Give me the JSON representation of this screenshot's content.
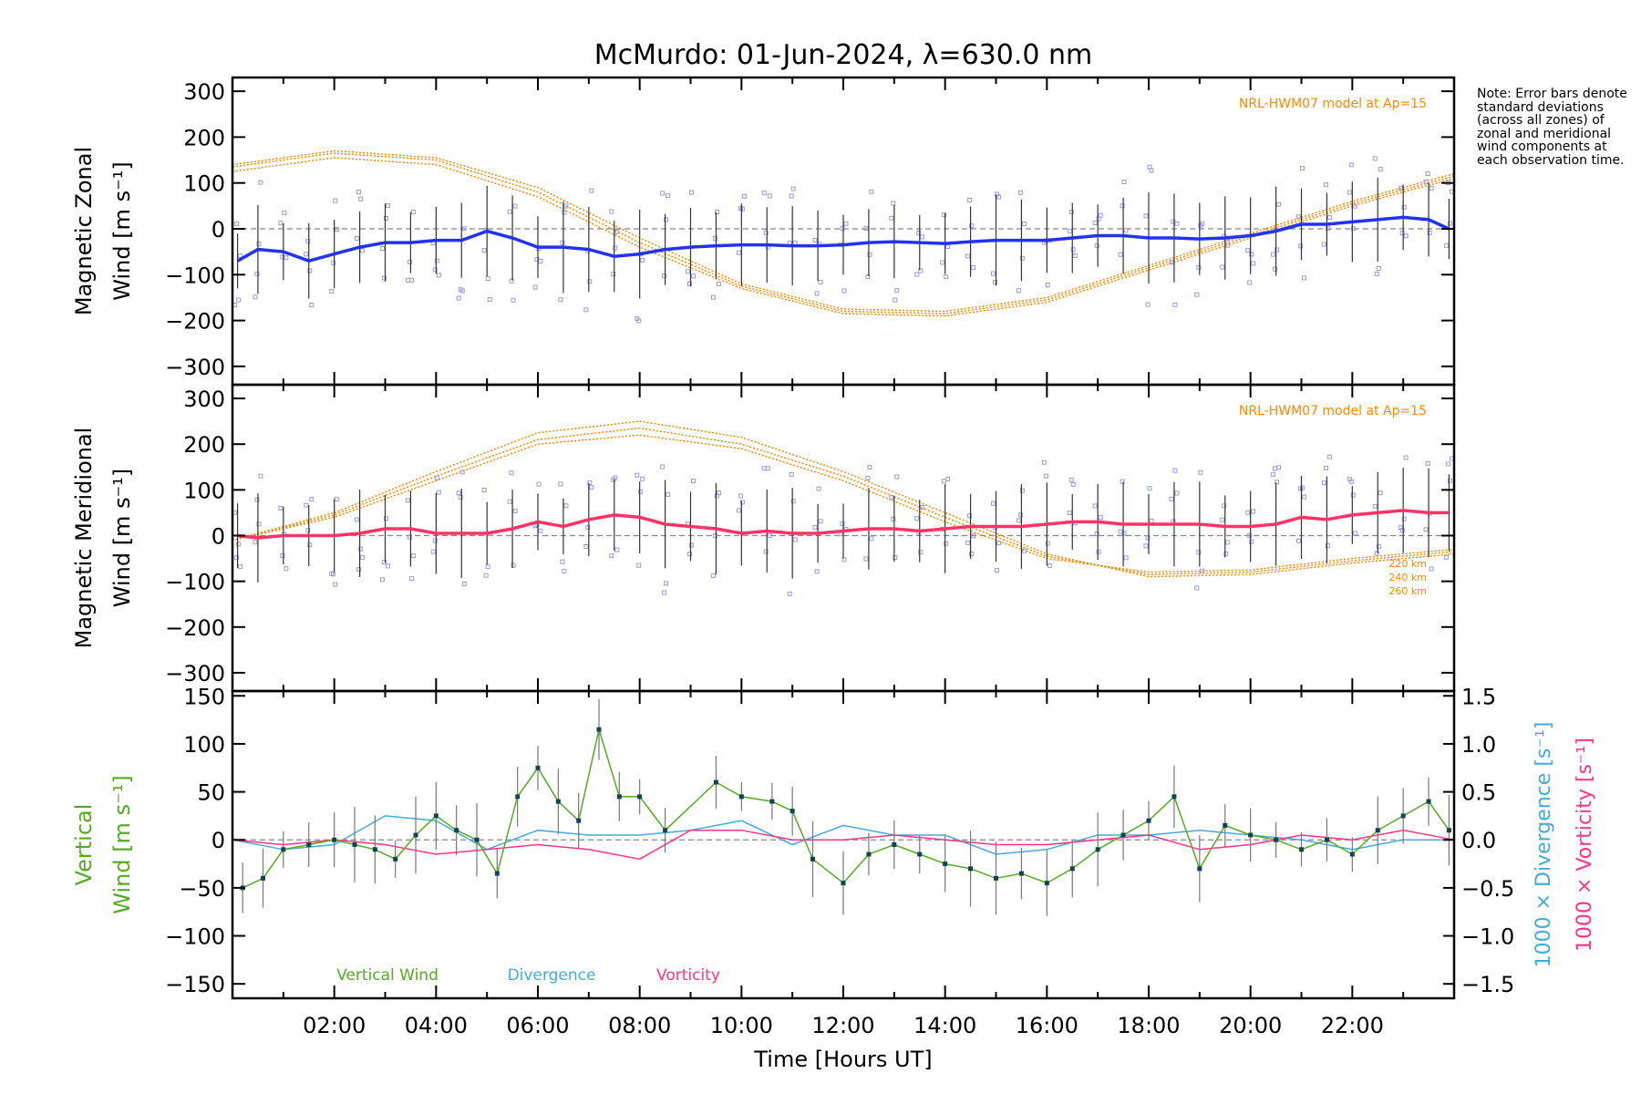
{
  "title": "McMurdo: 01-Jun-2024, λ=630.0 nm",
  "note": "Note: Error bars denote standard deviations (across all zones) of zonal and meridional wind components at each observation time.",
  "xlabel": "Time [Hours UT]",
  "x_tick_labels": [
    "02:00",
    "04:00",
    "06:00",
    "08:00",
    "10:00",
    "12:00",
    "14:00",
    "16:00",
    "18:00",
    "20:00",
    "22:00"
  ],
  "colors": {
    "zonal": "#2233ee",
    "zonal_end": "#3399ff",
    "meridional": "#ff3366",
    "model": "#ff8800",
    "scatter": "#9999dd",
    "vertical": "#55aa22",
    "divergence": "#44aadd",
    "vorticity": "#ff3388",
    "errbar": "#333333"
  },
  "chart_data": [
    {
      "type": "line",
      "name": "zonal",
      "ylabel_line1": "Magnetic Zonal",
      "ylabel_line2": "Wind [m s⁻¹]",
      "y_tick_labels": [
        "300",
        "200",
        "100",
        "0",
        "−100",
        "−200",
        "−300"
      ],
      "xlim": [
        0.0,
        24.0
      ],
      "ylim": [
        -340,
        330
      ],
      "model_label": "NRL-HWM07 model at Ap=15",
      "x": [
        0.1,
        0.5,
        1.0,
        1.5,
        2.0,
        2.5,
        3.0,
        3.5,
        4.0,
        4.5,
        5.0,
        5.5,
        6.0,
        6.5,
        7.0,
        7.5,
        8.0,
        8.5,
        9.0,
        9.5,
        10.0,
        10.5,
        11.0,
        11.5,
        12.0,
        12.5,
        13.0,
        13.5,
        14.0,
        14.5,
        15.0,
        15.5,
        16.0,
        16.5,
        17.0,
        17.5,
        18.0,
        18.5,
        19.0,
        19.5,
        20.0,
        20.5,
        21.0,
        21.5,
        22.0,
        22.5,
        23.0,
        23.5,
        23.9
      ],
      "y": [
        -70,
        -45,
        -50,
        -70,
        -55,
        -40,
        -30,
        -30,
        -25,
        -25,
        -5,
        -20,
        -40,
        -40,
        -45,
        -60,
        -55,
        -45,
        -40,
        -37,
        -35,
        -35,
        -37,
        -37,
        -35,
        -30,
        -28,
        -30,
        -32,
        -28,
        -25,
        -25,
        -25,
        -20,
        -15,
        -15,
        -20,
        -20,
        -22,
        -20,
        -15,
        -5,
        10,
        10,
        15,
        20,
        25,
        20,
        0
      ],
      "scatter_note": "",
      "models": [
        {
          "x": [
            0,
            2,
            4,
            6,
            8,
            10,
            12,
            14,
            16,
            18,
            20,
            22,
            24
          ],
          "y": [
            125,
            155,
            140,
            70,
            -40,
            -130,
            -185,
            -190,
            -160,
            -90,
            -20,
            50,
            110
          ]
        },
        {
          "x": [
            0,
            2,
            4,
            6,
            8,
            10,
            12,
            14,
            16,
            18,
            20,
            22,
            24
          ],
          "y": [
            135,
            165,
            150,
            80,
            -30,
            -125,
            -180,
            -185,
            -155,
            -85,
            -15,
            55,
            115
          ]
        },
        {
          "x": [
            0,
            2,
            4,
            6,
            8,
            10,
            12,
            14,
            16,
            18,
            20,
            22,
            24
          ],
          "y": [
            140,
            170,
            155,
            90,
            -20,
            -120,
            -175,
            -180,
            -150,
            -80,
            -10,
            60,
            120
          ]
        }
      ]
    },
    {
      "type": "line",
      "name": "meridional",
      "ylabel_line1": "Magnetic Meridional",
      "ylabel_line2": "Wind [m s⁻¹]",
      "y_tick_labels": [
        "300",
        "200",
        "100",
        "0",
        "−100",
        "−200",
        "−300"
      ],
      "xlim": [
        0.0,
        24.0
      ],
      "ylim": [
        -340,
        330
      ],
      "model_label": "NRL-HWM07 model at Ap=15",
      "model_alt_labels": [
        "220 km",
        "240 km",
        "260 km"
      ],
      "x": [
        0.1,
        0.5,
        1.0,
        1.5,
        2.0,
        2.5,
        3.0,
        3.5,
        4.0,
        4.5,
        5.0,
        5.5,
        6.0,
        6.5,
        7.0,
        7.5,
        8.0,
        8.5,
        9.0,
        9.5,
        10.0,
        10.5,
        11.0,
        11.5,
        12.0,
        12.5,
        13.0,
        13.5,
        14.0,
        14.5,
        15.0,
        15.5,
        16.0,
        16.5,
        17.0,
        17.5,
        18.0,
        18.5,
        19.0,
        19.5,
        20.0,
        20.5,
        21.0,
        21.5,
        22.0,
        22.5,
        23.0,
        23.5,
        23.9
      ],
      "y": [
        0,
        -5,
        0,
        0,
        0,
        5,
        15,
        15,
        5,
        5,
        5,
        15,
        30,
        20,
        35,
        45,
        40,
        25,
        20,
        15,
        5,
        10,
        5,
        5,
        10,
        15,
        15,
        10,
        15,
        20,
        20,
        20,
        25,
        30,
        30,
        25,
        25,
        25,
        25,
        20,
        20,
        25,
        40,
        35,
        45,
        50,
        55,
        50,
        50
      ],
      "models": [
        {
          "x": [
            0,
            2,
            4,
            6,
            8,
            10,
            12,
            14,
            16,
            18,
            20,
            22,
            24
          ],
          "y": [
            -10,
            40,
            120,
            200,
            220,
            190,
            120,
            30,
            -50,
            -80,
            -75,
            -50,
            -30
          ]
        },
        {
          "x": [
            0,
            2,
            4,
            6,
            8,
            10,
            12,
            14,
            16,
            18,
            20,
            22,
            24
          ],
          "y": [
            -10,
            45,
            130,
            210,
            235,
            200,
            130,
            40,
            -45,
            -85,
            -80,
            -55,
            -35
          ]
        },
        {
          "x": [
            0,
            2,
            4,
            6,
            8,
            10,
            12,
            14,
            16,
            18,
            20,
            22,
            24
          ],
          "y": [
            -10,
            50,
            140,
            225,
            250,
            215,
            140,
            50,
            -40,
            -90,
            -85,
            -60,
            -40
          ]
        }
      ]
    },
    {
      "type": "line",
      "name": "vertical",
      "ylabel_line1": "Vertical",
      "ylabel_line2": "Wind [m s⁻¹]",
      "y_tick_labels": [
        "150",
        "100",
        "50",
        "0",
        "−50",
        "−100",
        "−150"
      ],
      "right_tick_labels": [
        "1.5",
        "1.0",
        "0.5",
        "0.0",
        "−0.5",
        "−1.0",
        "−1.5"
      ],
      "right_label_1": "1000 × Divergence [s⁻¹]",
      "right_label_2": "1000 × Vorticity [s⁻¹]",
      "legend": [
        "Vertical Wind",
        "Divergence",
        "Vorticity"
      ],
      "xlim": [
        0.0,
        24.0
      ],
      "ylim": [
        -165,
        155
      ],
      "x": [
        0.2,
        0.6,
        1.0,
        1.5,
        2.0,
        2.4,
        2.8,
        3.2,
        3.6,
        4.0,
        4.4,
        4.8,
        5.2,
        5.6,
        6.0,
        6.4,
        6.8,
        7.2,
        7.6,
        8.0,
        8.5,
        9.5,
        10.0,
        10.6,
        11.0,
        11.4,
        12.0,
        12.5,
        13.0,
        13.5,
        14.0,
        14.5,
        15.0,
        15.5,
        16.0,
        16.5,
        17.0,
        17.5,
        18.0,
        18.5,
        19.0,
        19.5,
        20.0,
        20.5,
        21.0,
        21.5,
        22.0,
        22.5,
        23.0,
        23.5,
        23.9
      ],
      "y": [
        -50,
        -40,
        -10,
        -5,
        0,
        -5,
        -10,
        -20,
        5,
        25,
        10,
        0,
        -35,
        45,
        75,
        40,
        20,
        115,
        45,
        45,
        10,
        60,
        45,
        40,
        30,
        -20,
        -45,
        -15,
        -5,
        -15,
        -25,
        -30,
        -40,
        -35,
        -45,
        -30,
        -10,
        5,
        20,
        45,
        -30,
        15,
        5,
        0,
        -10,
        0,
        -15,
        10,
        25,
        40,
        10
      ],
      "divergence": {
        "x": [
          0,
          1,
          2,
          3,
          4,
          5,
          6,
          7,
          8,
          9,
          10,
          11,
          12,
          13,
          14,
          15,
          16,
          17,
          18,
          19,
          20,
          21,
          22,
          23,
          24
        ],
        "y": [
          0,
          -0.1,
          -0.05,
          0.25,
          0.2,
          -0.1,
          0.1,
          0.05,
          0.05,
          0.1,
          0.2,
          -0.05,
          0.15,
          0.05,
          0.05,
          -0.15,
          -0.1,
          0.05,
          0.05,
          0.1,
          0.05,
          0.0,
          -0.1,
          0.0,
          0.0
        ]
      },
      "vorticity": {
        "x": [
          0,
          1,
          2,
          3,
          4,
          5,
          6,
          7,
          8,
          9,
          10,
          11,
          12,
          13,
          14,
          15,
          16,
          17,
          18,
          19,
          20,
          21,
          22,
          23,
          24
        ],
        "y": [
          0,
          -0.05,
          0.0,
          -0.05,
          -0.15,
          -0.1,
          -0.05,
          -0.1,
          -0.2,
          0.1,
          0.1,
          0.0,
          0.0,
          0.05,
          0.0,
          -0.05,
          -0.05,
          0.0,
          0.05,
          -0.1,
          -0.05,
          0.05,
          0.0,
          0.1,
          0.0
        ]
      }
    }
  ]
}
